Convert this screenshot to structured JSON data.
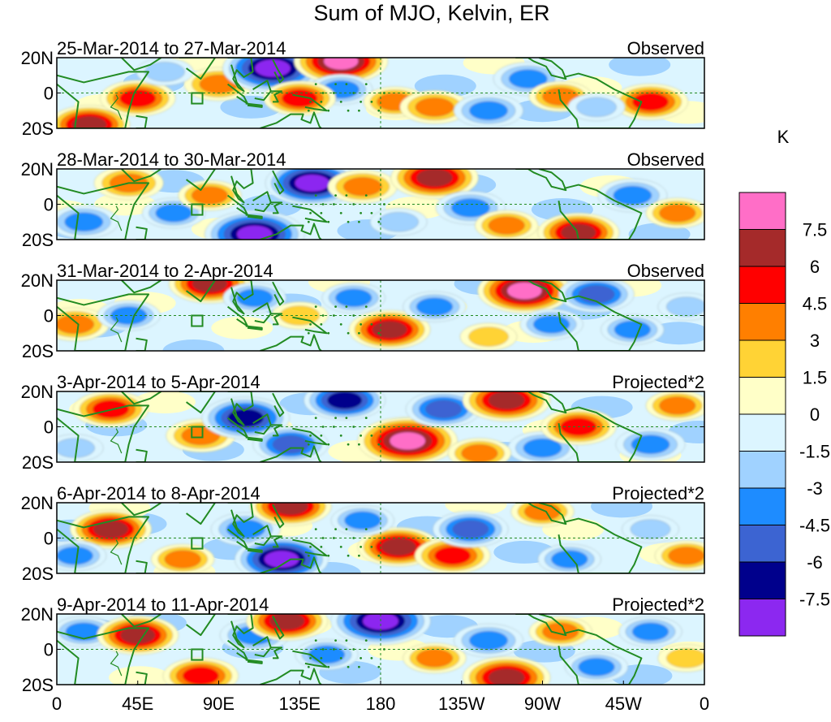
{
  "chart_data": {
    "type": "heatmap",
    "title": "Sum of MJO, Kelvin, ER",
    "x_ticks": [
      {
        "lon": 0,
        "label": "0"
      },
      {
        "lon": 45,
        "label": "45E"
      },
      {
        "lon": 90,
        "label": "90E"
      },
      {
        "lon": 135,
        "label": "135E"
      },
      {
        "lon": 180,
        "label": "180"
      },
      {
        "lon": 225,
        "label": "135W"
      },
      {
        "lon": 270,
        "label": "90W"
      },
      {
        "lon": 315,
        "label": "45W"
      },
      {
        "lon": 360,
        "label": "0"
      }
    ],
    "y_ticks": [
      {
        "lat": 20,
        "label": "20N"
      },
      {
        "lat": 0,
        "label": "0"
      },
      {
        "lat": -20,
        "label": "20S"
      }
    ],
    "lon_range": [
      0,
      360
    ],
    "lat_range": [
      -20,
      20
    ],
    "colorbar": {
      "unit": "K",
      "levels": [
        7.5,
        6,
        4.5,
        3,
        1.5,
        0,
        -1.5,
        -3,
        -4.5,
        -6,
        -7.5
      ],
      "level_labels": [
        "7.5",
        "6",
        "4.5",
        "3",
        "1.5",
        "0",
        "-1.5",
        "-3",
        "-4.5",
        "-6",
        "-7.5"
      ],
      "colors_top_to_bottom": [
        "#ff6ec7",
        "#a52a2a",
        "#ff0000",
        "#ff7f00",
        "#ffd335",
        "#ffffc8",
        "#dcf5ff",
        "#a0d2ff",
        "#1e8cff",
        "#3c64d2",
        "#00008c",
        "#8c28f0"
      ]
    },
    "panels": [
      {
        "title": "25-Mar-2014 to 27-Mar-2014",
        "tag": "Observed",
        "blobs": [
          {
            "lon": 18,
            "lat": -18,
            "v": 6
          },
          {
            "lon": 45,
            "lat": -3,
            "v": 5
          },
          {
            "lon": 90,
            "lat": 5,
            "v": 4
          },
          {
            "lon": 120,
            "lat": 14,
            "v": -9
          },
          {
            "lon": 158,
            "lat": 18,
            "v": 8
          },
          {
            "lon": 158,
            "lat": 2,
            "v": -3
          },
          {
            "lon": 188,
            "lat": -5,
            "v": 3
          },
          {
            "lon": 210,
            "lat": -8,
            "v": 4
          },
          {
            "lon": 240,
            "lat": -10,
            "v": -4
          },
          {
            "lon": 262,
            "lat": 8,
            "v": -4
          },
          {
            "lon": 280,
            "lat": -2,
            "v": 3
          },
          {
            "lon": 330,
            "lat": -5,
            "v": 5
          },
          {
            "lon": 135,
            "lat": -3,
            "v": 4.5
          },
          {
            "lon": 60,
            "lat": 12,
            "v": -2
          },
          {
            "lon": 300,
            "lat": -8,
            "v": -2
          }
        ]
      },
      {
        "title": "28-Mar-2014 to 30-Mar-2014",
        "tag": "Observed",
        "blobs": [
          {
            "lon": 15,
            "lat": -10,
            "v": -4
          },
          {
            "lon": 40,
            "lat": 12,
            "v": 4
          },
          {
            "lon": 65,
            "lat": -5,
            "v": -3
          },
          {
            "lon": 110,
            "lat": -17,
            "v": -9
          },
          {
            "lon": 142,
            "lat": 12,
            "v": -8
          },
          {
            "lon": 170,
            "lat": 10,
            "v": 4
          },
          {
            "lon": 210,
            "lat": 15,
            "v": 7
          },
          {
            "lon": 230,
            "lat": -2,
            "v": -4
          },
          {
            "lon": 250,
            "lat": -12,
            "v": 3
          },
          {
            "lon": 290,
            "lat": -16,
            "v": 6
          },
          {
            "lon": 320,
            "lat": 5,
            "v": -4
          },
          {
            "lon": 345,
            "lat": -5,
            "v": 3
          },
          {
            "lon": 85,
            "lat": 5,
            "v": 3
          },
          {
            "lon": 190,
            "lat": -10,
            "v": -2
          }
        ]
      },
      {
        "title": "31-Mar-2014 to 2-Apr-2014",
        "tag": "Observed",
        "blobs": [
          {
            "lon": 10,
            "lat": -5,
            "v": 4
          },
          {
            "lon": 40,
            "lat": 0,
            "v": -3
          },
          {
            "lon": 85,
            "lat": 18,
            "v": 6
          },
          {
            "lon": 110,
            "lat": 10,
            "v": -3
          },
          {
            "lon": 135,
            "lat": 0,
            "v": 2
          },
          {
            "lon": 185,
            "lat": -8,
            "v": 6
          },
          {
            "lon": 165,
            "lat": 10,
            "v": -3
          },
          {
            "lon": 210,
            "lat": 5,
            "v": -3
          },
          {
            "lon": 260,
            "lat": 14,
            "v": 8
          },
          {
            "lon": 275,
            "lat": -5,
            "v": -3
          },
          {
            "lon": 300,
            "lat": 12,
            "v": -5
          },
          {
            "lon": 320,
            "lat": -8,
            "v": -3
          },
          {
            "lon": 240,
            "lat": -12,
            "v": 2
          },
          {
            "lon": 350,
            "lat": 5,
            "v": -2
          }
        ]
      },
      {
        "title": "3-Apr-2014 to 5-Apr-2014",
        "tag": "Projected*2",
        "blobs": [
          {
            "lon": 30,
            "lat": 10,
            "v": 5
          },
          {
            "lon": 80,
            "lat": -5,
            "v": 4
          },
          {
            "lon": 105,
            "lat": 5,
            "v": -7
          },
          {
            "lon": 130,
            "lat": -10,
            "v": -5
          },
          {
            "lon": 195,
            "lat": -8,
            "v": 9
          },
          {
            "lon": 160,
            "lat": 15,
            "v": -6
          },
          {
            "lon": 215,
            "lat": 10,
            "v": -5
          },
          {
            "lon": 250,
            "lat": 15,
            "v": 7
          },
          {
            "lon": 270,
            "lat": -12,
            "v": -4
          },
          {
            "lon": 290,
            "lat": 0,
            "v": 5
          },
          {
            "lon": 330,
            "lat": -10,
            "v": -4
          },
          {
            "lon": 345,
            "lat": 12,
            "v": 3
          },
          {
            "lon": 10,
            "lat": -12,
            "v": -2
          },
          {
            "lon": 235,
            "lat": -15,
            "v": 3
          }
        ]
      },
      {
        "title": "6-Apr-2014 to 8-Apr-2014",
        "tag": "Projected*2",
        "blobs": [
          {
            "lon": 30,
            "lat": 5,
            "v": 6
          },
          {
            "lon": 10,
            "lat": -10,
            "v": -3
          },
          {
            "lon": 70,
            "lat": -12,
            "v": 3
          },
          {
            "lon": 105,
            "lat": 5,
            "v": -4
          },
          {
            "lon": 125,
            "lat": -12,
            "v": -8
          },
          {
            "lon": 130,
            "lat": 18,
            "v": 6
          },
          {
            "lon": 190,
            "lat": -5,
            "v": 6
          },
          {
            "lon": 220,
            "lat": -10,
            "v": 5
          },
          {
            "lon": 230,
            "lat": 5,
            "v": -5
          },
          {
            "lon": 170,
            "lat": 10,
            "v": -3
          },
          {
            "lon": 270,
            "lat": 15,
            "v": 3
          },
          {
            "lon": 285,
            "lat": -12,
            "v": -3
          },
          {
            "lon": 330,
            "lat": 5,
            "v": -2
          },
          {
            "lon": 350,
            "lat": -10,
            "v": 3
          }
        ]
      },
      {
        "title": "9-Apr-2014 to 11-Apr-2014",
        "tag": "Projected*2",
        "blobs": [
          {
            "lon": 15,
            "lat": 10,
            "v": -3
          },
          {
            "lon": 45,
            "lat": 8,
            "v": 6
          },
          {
            "lon": 80,
            "lat": -15,
            "v": 5
          },
          {
            "lon": 110,
            "lat": 8,
            "v": -4
          },
          {
            "lon": 128,
            "lat": 16,
            "v": 6
          },
          {
            "lon": 150,
            "lat": -3,
            "v": -3
          },
          {
            "lon": 180,
            "lat": 16,
            "v": -9
          },
          {
            "lon": 210,
            "lat": -5,
            "v": 3
          },
          {
            "lon": 240,
            "lat": 5,
            "v": -4
          },
          {
            "lon": 250,
            "lat": -16,
            "v": 7
          },
          {
            "lon": 280,
            "lat": 10,
            "v": 3
          },
          {
            "lon": 300,
            "lat": -10,
            "v": -3
          },
          {
            "lon": 330,
            "lat": 10,
            "v": -3
          },
          {
            "lon": 350,
            "lat": -5,
            "v": 2
          }
        ]
      }
    ]
  }
}
